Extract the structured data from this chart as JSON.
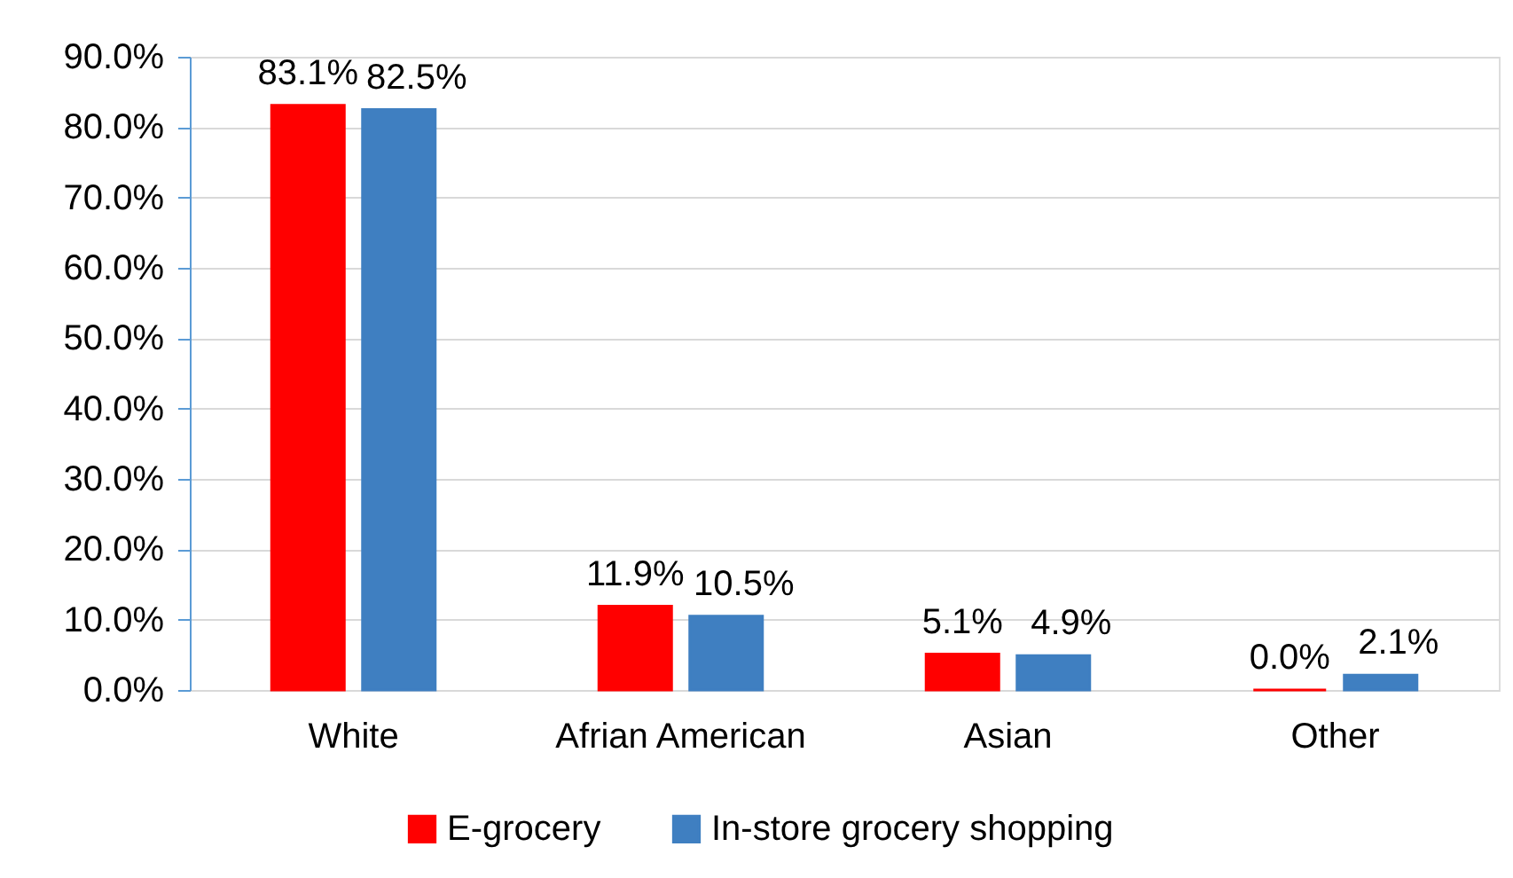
{
  "chart_data": {
    "type": "bar",
    "categories": [
      "White",
      "Afrian American",
      "Asian",
      "Other"
    ],
    "series": [
      {
        "name": "E-grocery",
        "color": "#ff0000",
        "values": [
          83.1,
          11.9,
          5.1,
          0.0
        ],
        "value_labels": [
          "83.1%",
          "11.9%",
          "5.1%",
          "0.0%"
        ]
      },
      {
        "name": "In-store grocery shopping",
        "color": "#3f7fc1",
        "values": [
          82.5,
          10.5,
          4.9,
          2.1
        ],
        "value_labels": [
          "82.5%",
          "10.5%",
          "4.9%",
          "2.1%"
        ]
      }
    ],
    "ylim": [
      0,
      90
    ],
    "yticks": [
      {
        "value": 0,
        "label": "0.0%"
      },
      {
        "value": 10,
        "label": "10.0%"
      },
      {
        "value": 20,
        "label": "20.0%"
      },
      {
        "value": 30,
        "label": "30.0%"
      },
      {
        "value": 40,
        "label": "40.0%"
      },
      {
        "value": 50,
        "label": "50.0%"
      },
      {
        "value": 60,
        "label": "60.0%"
      },
      {
        "value": 70,
        "label": "70.0%"
      },
      {
        "value": 80,
        "label": "80.0%"
      },
      {
        "value": 90,
        "label": "90.0%"
      }
    ],
    "grid": "y",
    "legend": "bottom"
  }
}
